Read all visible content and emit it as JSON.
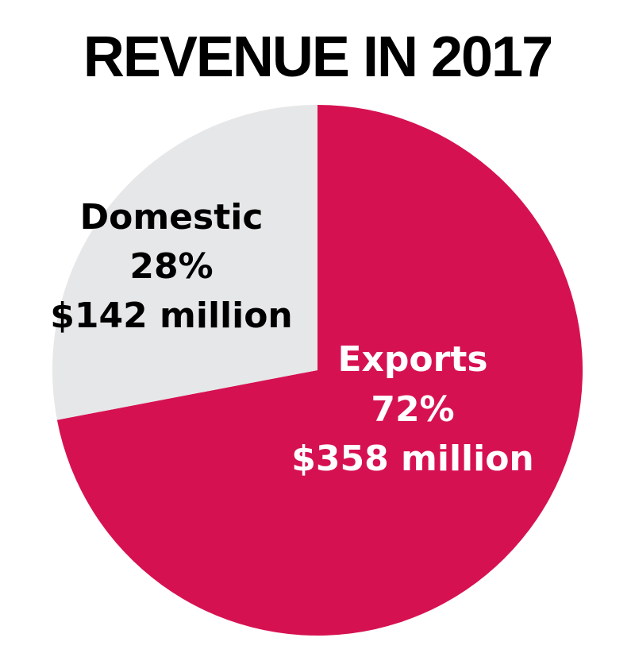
{
  "chart_data": {
    "type": "pie",
    "title": "REVENUE IN 2017",
    "slices": [
      {
        "name": "Exports",
        "value": 72,
        "percent_label": "72%",
        "amount_label": "$358 million",
        "color": "#d61151",
        "text_color": "#ffffff"
      },
      {
        "name": "Domestic",
        "value": 28,
        "percent_label": "28%",
        "amount_label": "$142 million",
        "color": "#e6e7e8",
        "text_color": "#000000"
      }
    ]
  }
}
